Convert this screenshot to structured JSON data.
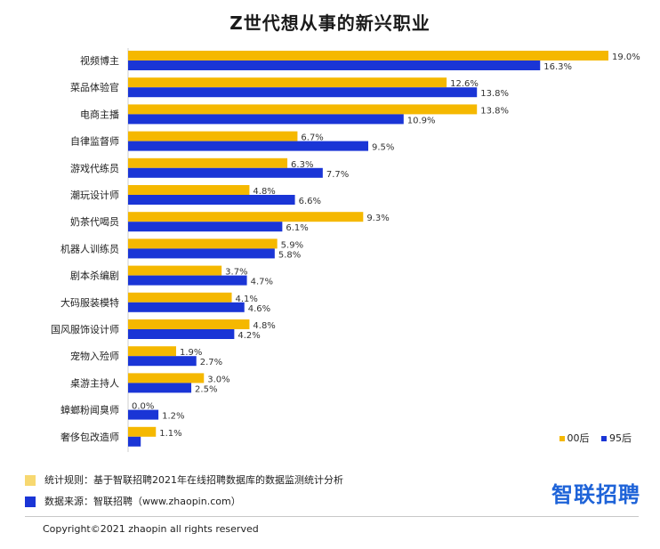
{
  "title": "Z世代想从事的新兴职业",
  "colors": {
    "series_00": "#f5b800",
    "series_95": "#1a35d6",
    "note_box_1": "#f7d870",
    "note_box_2": "#1a35d6",
    "logo": "#1e63d8"
  },
  "legend": {
    "label_00": "00后",
    "label_95": "95后"
  },
  "notes": {
    "rule": "统计规则：基于智联招聘2021年在线招聘数据库的数据监测统计分析",
    "source": "数据来源：智联招聘（www.zhaopin.com）"
  },
  "logo_text": "智联招聘",
  "copyright": "Copyright©2021 zhaopin  all rights reserved",
  "chart_data": {
    "type": "bar",
    "orientation": "horizontal",
    "title": "Z世代想从事的新兴职业",
    "categories": [
      "视频博主",
      "菜品体验官",
      "电商主播",
      "自律监督师",
      "游戏代练员",
      "潮玩设计师",
      "奶茶代喝员",
      "机器人训练员",
      "剧本杀编剧",
      "大码服装模特",
      "国风服饰设计师",
      "宠物入殓师",
      "桌游主持人",
      "蟑螂粉闻臭师",
      "奢侈包改造师"
    ],
    "series": [
      {
        "name": "00后",
        "values": [
          19.0,
          12.6,
          13.8,
          6.7,
          6.3,
          4.8,
          9.3,
          5.9,
          3.7,
          4.1,
          4.8,
          1.9,
          3.0,
          0.0,
          1.1
        ],
        "labels": [
          "19.0%",
          "12.6%",
          "13.8%",
          "6.7%",
          "6.3%",
          "4.8%",
          "9.3%",
          "5.9%",
          "3.7%",
          "4.1%",
          "4.8%",
          "1.9%",
          "3.0%",
          "0.0%",
          "1.1%"
        ]
      },
      {
        "name": "95后",
        "values": [
          16.3,
          13.8,
          10.9,
          9.5,
          7.7,
          6.6,
          6.1,
          5.8,
          4.7,
          4.6,
          4.2,
          2.7,
          2.5,
          1.2,
          0.5
        ],
        "labels": [
          "16.3%",
          "13.8%",
          "10.9%",
          "9.5%",
          "7.7%",
          "6.6%",
          "6.1%",
          "5.8%",
          "4.7%",
          "4.6%",
          "4.2%",
          "2.7%",
          "2.5%",
          "1.2%",
          ""
        ]
      }
    ],
    "xlim": [
      0,
      20
    ],
    "grid": false,
    "legend_position": "bottom-right"
  }
}
